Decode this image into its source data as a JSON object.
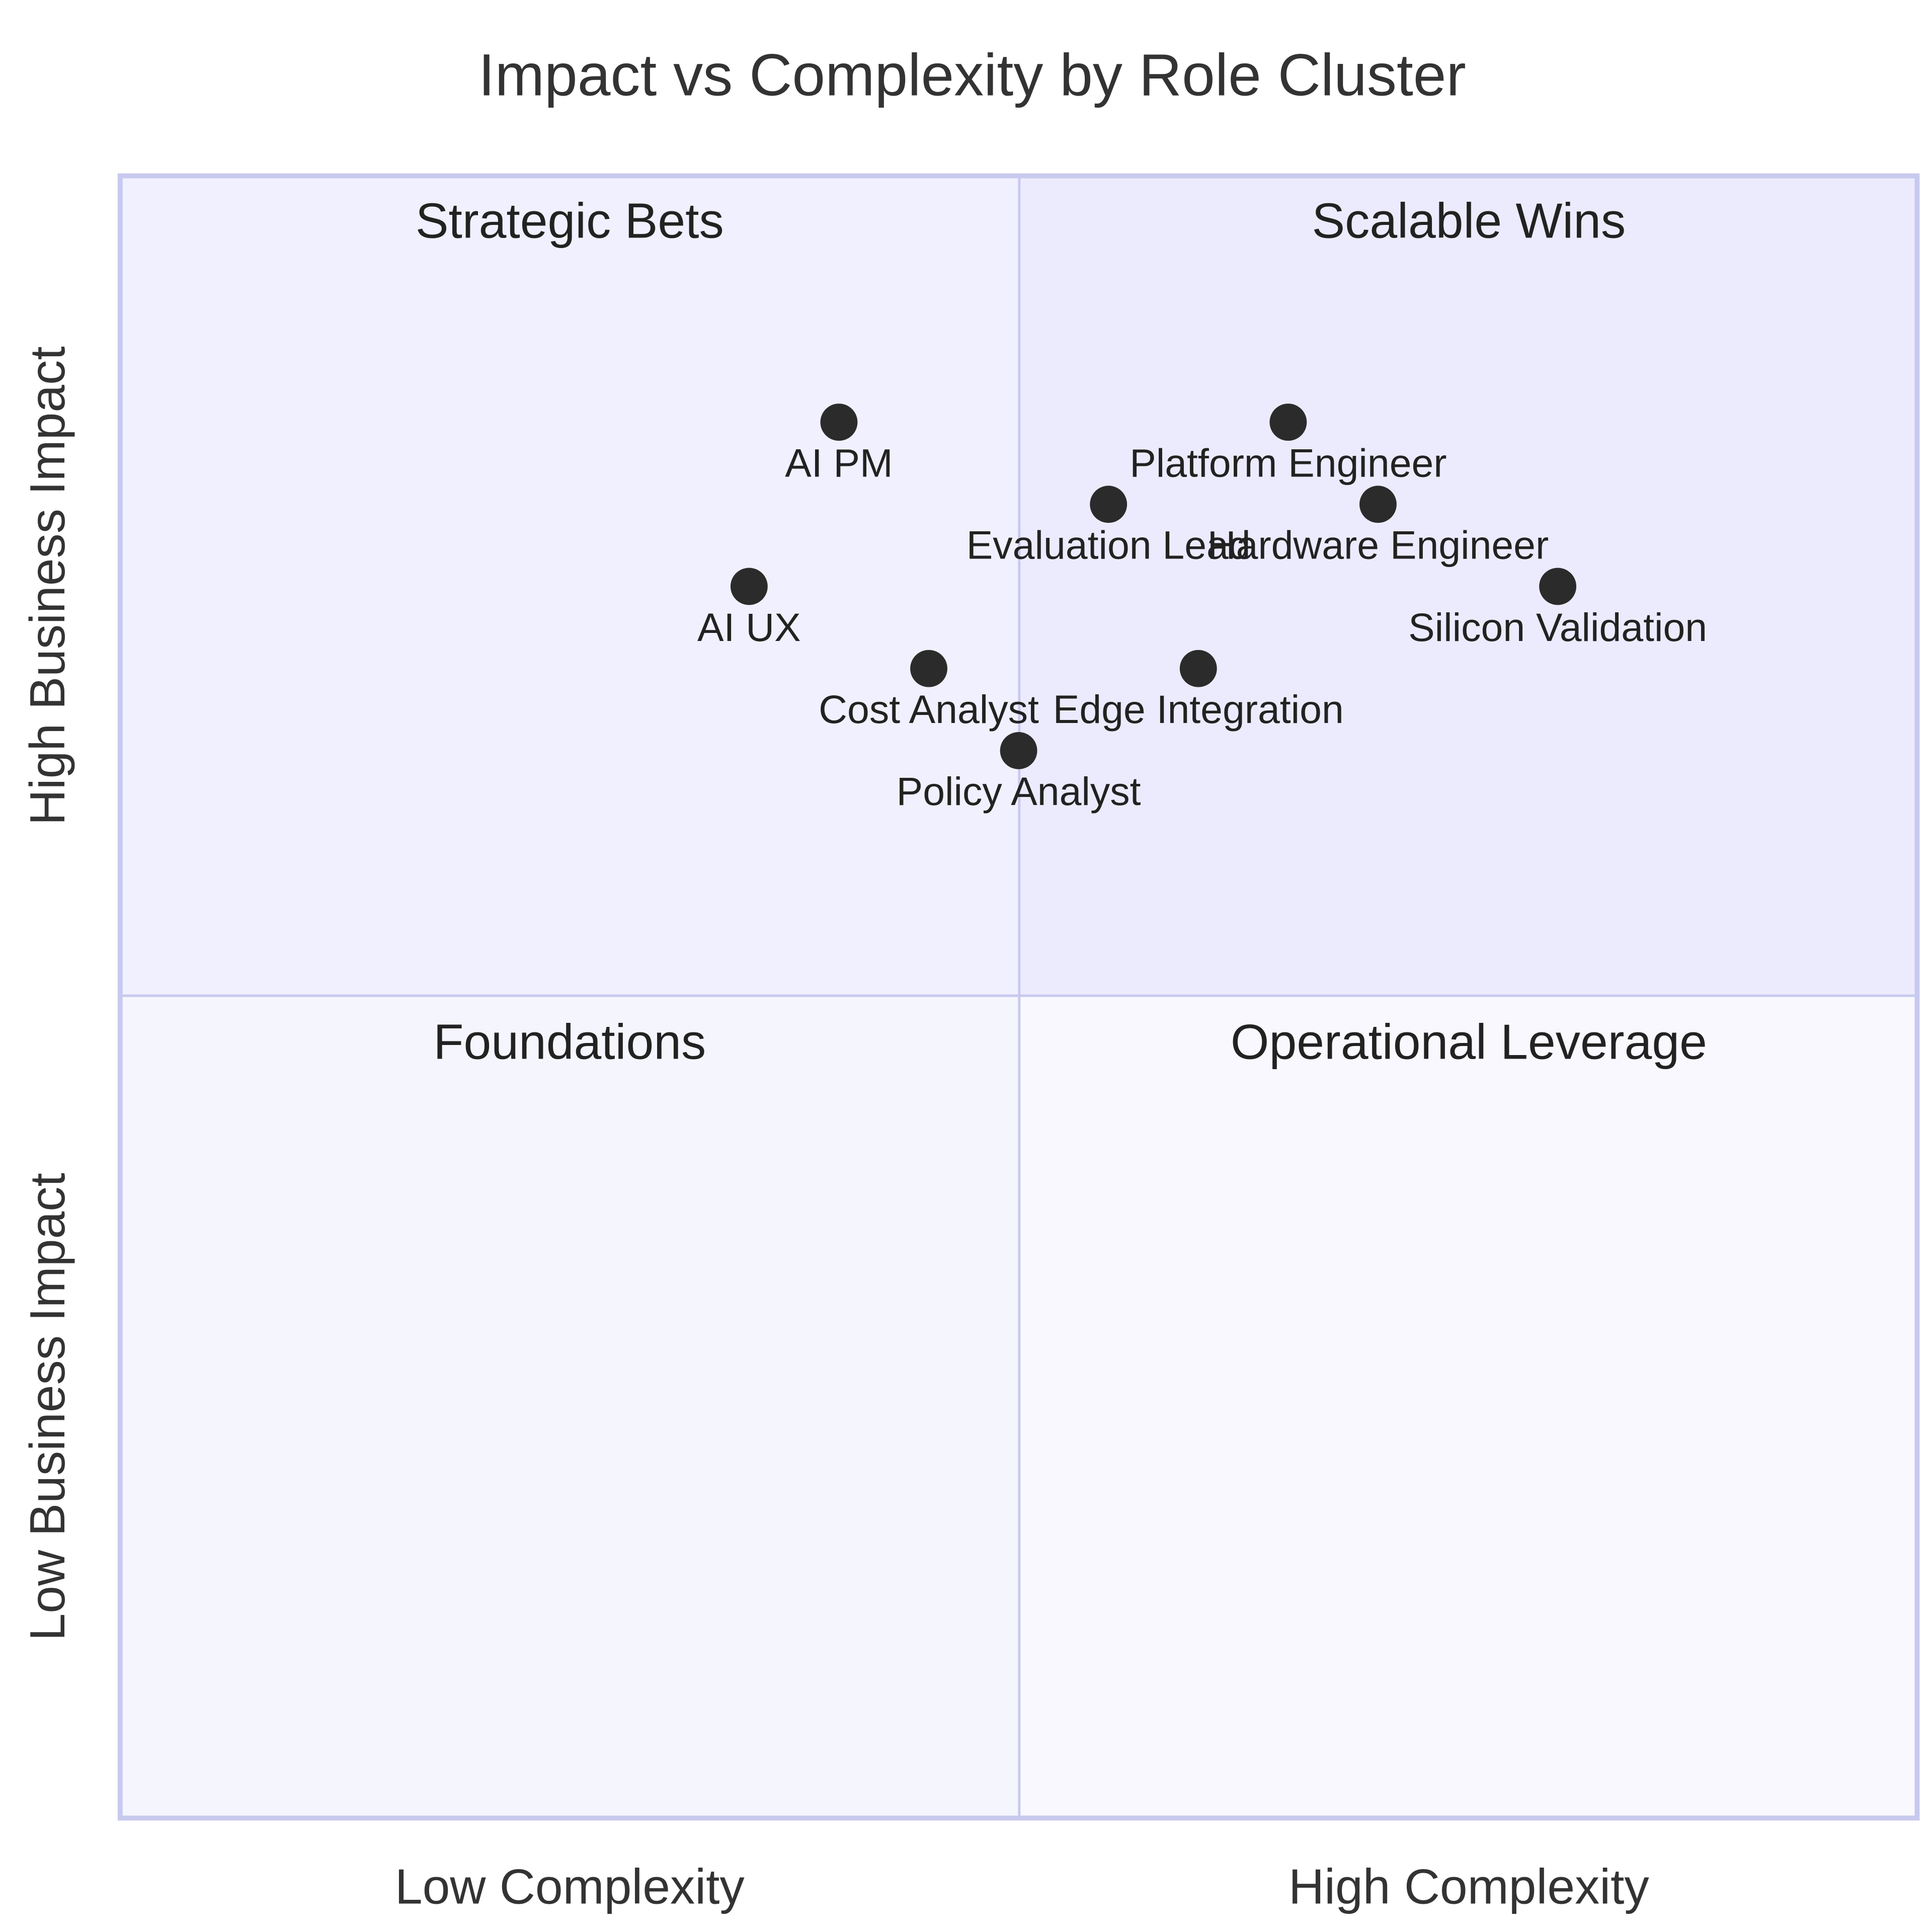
{
  "chart_data": {
    "type": "scatter",
    "title": "Impact vs Complexity by Role Cluster",
    "x_axis": {
      "low_label": "Low Complexity",
      "high_label": "High Complexity",
      "range": [
        0,
        1
      ]
    },
    "y_axis": {
      "low_label": "Low Business Impact",
      "high_label": "High Business Impact",
      "range": [
        0,
        1
      ]
    },
    "quadrants": {
      "top_right": {
        "label": "Scalable Wins",
        "color": "#ECEBFD"
      },
      "top_left": {
        "label": "Strategic Bets",
        "color": "#F0F0FE"
      },
      "bottom_left": {
        "label": "Foundations",
        "color": "#F5F5FE"
      },
      "bottom_right": {
        "label": "Operational Leverage",
        "color": "#F8F8FE"
      }
    },
    "border_color": "#C8C9EE",
    "point_color": "#2B2B2B",
    "points": [
      {
        "label": "AI PM",
        "x": 0.4,
        "y": 0.85
      },
      {
        "label": "Platform Engineer",
        "x": 0.65,
        "y": 0.85
      },
      {
        "label": "Evaluation Lead",
        "x": 0.55,
        "y": 0.8
      },
      {
        "label": "Hardware Engineer",
        "x": 0.7,
        "y": 0.8
      },
      {
        "label": "AI UX",
        "x": 0.35,
        "y": 0.75
      },
      {
        "label": "Silicon Validation",
        "x": 0.8,
        "y": 0.75
      },
      {
        "label": "Cost Analyst",
        "x": 0.45,
        "y": 0.7
      },
      {
        "label": "Edge Integration",
        "x": 0.6,
        "y": 0.7
      },
      {
        "label": "Policy Analyst",
        "x": 0.5,
        "y": 0.65
      }
    ]
  }
}
